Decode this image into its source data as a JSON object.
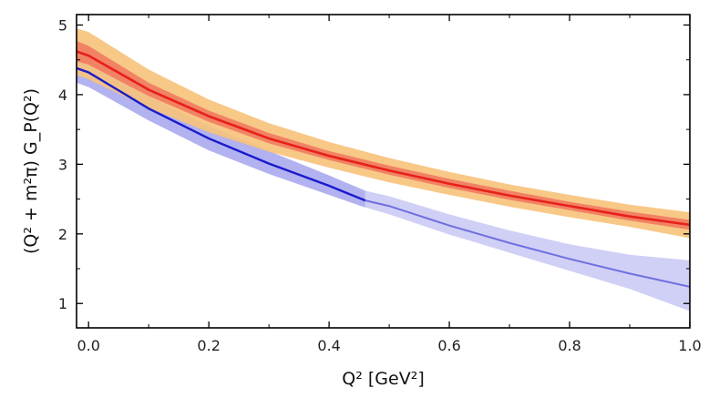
{
  "chart_data": {
    "type": "line",
    "xlabel": "Q² [GeV²]",
    "ylabel": "(Q² + m²π) G_P(Q²)",
    "xlim": [
      -0.02,
      1.0
    ],
    "ylim": [
      0.65,
      5.15
    ],
    "grid": false,
    "x_ticks": [
      "0.0",
      "0.2",
      "0.4",
      "0.6",
      "0.8",
      "1.0"
    ],
    "y_ticks": [
      "1",
      "2",
      "3",
      "4",
      "5"
    ],
    "series": [
      {
        "color": "#e8201a",
        "band_colors": [
          "#f7c27a",
          "#f0765e"
        ],
        "x": [
          -0.02,
          0.0,
          0.1,
          0.2,
          0.3,
          0.4,
          0.5,
          0.6,
          0.7,
          0.8,
          0.9,
          1.0
        ],
        "y": [
          4.62,
          4.56,
          4.07,
          3.69,
          3.37,
          3.12,
          2.91,
          2.72,
          2.55,
          2.4,
          2.25,
          2.13
        ],
        "outer_lower": [
          4.28,
          4.22,
          3.81,
          3.46,
          3.18,
          2.95,
          2.74,
          2.56,
          2.39,
          2.24,
          2.1,
          1.94
        ],
        "outer_upper": [
          4.95,
          4.9,
          4.36,
          3.93,
          3.59,
          3.32,
          3.09,
          2.89,
          2.71,
          2.56,
          2.42,
          2.31
        ],
        "inner_lower": [
          4.48,
          4.43,
          3.98,
          3.61,
          3.3,
          3.06,
          2.85,
          2.66,
          2.49,
          2.34,
          2.19,
          2.06
        ],
        "inner_upper": [
          4.77,
          4.7,
          4.17,
          3.77,
          3.45,
          3.19,
          2.98,
          2.79,
          2.62,
          2.46,
          2.32,
          2.2
        ]
      },
      {
        "color": "#1a1acc",
        "extrapolated_color": "#7070e0",
        "band_color": "#c8c8f5",
        "split_x": 0.46,
        "x": [
          -0.02,
          0.0,
          0.1,
          0.2,
          0.3,
          0.4,
          0.46,
          0.5,
          0.6,
          0.7,
          0.8,
          0.9,
          1.0
        ],
        "y": [
          4.38,
          4.32,
          3.8,
          3.37,
          3.01,
          2.69,
          2.48,
          2.4,
          2.12,
          1.87,
          1.64,
          1.43,
          1.24
        ],
        "lower": [
          4.17,
          4.11,
          3.63,
          3.2,
          2.86,
          2.56,
          2.38,
          2.28,
          1.99,
          1.73,
          1.47,
          1.21,
          0.89
        ],
        "upper": [
          4.55,
          4.5,
          3.97,
          3.55,
          3.19,
          2.84,
          2.62,
          2.54,
          2.28,
          2.05,
          1.85,
          1.7,
          1.62
        ]
      }
    ]
  }
}
